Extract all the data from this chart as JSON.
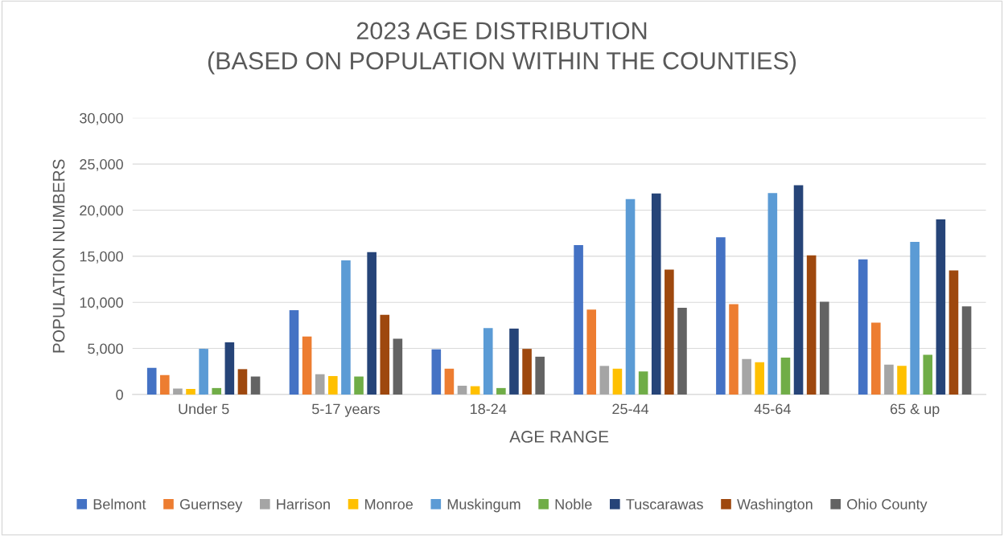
{
  "chart_data": {
    "type": "bar",
    "title": "2023 AGE DISTRIBUTION\n(BASED ON POPULATION WITHIN THE COUNTIES)",
    "xlabel": "AGE RANGE",
    "ylabel": "POPULATION NUMBERS",
    "categories": [
      "Under 5",
      "5-17 years",
      "18-24",
      "25-44",
      "45-64",
      "65 & up"
    ],
    "series": [
      {
        "name": "Belmont",
        "color": "#4472c4",
        "values": [
          2900,
          9150,
          4900,
          16200,
          17050,
          14650
        ]
      },
      {
        "name": "Guernsey",
        "color": "#ed7d31",
        "values": [
          2100,
          6300,
          2800,
          9200,
          9800,
          7800
        ]
      },
      {
        "name": "Harrison",
        "color": "#a5a5a5",
        "values": [
          650,
          2200,
          950,
          3100,
          3850,
          3250
        ]
      },
      {
        "name": "Monroe",
        "color": "#ffc000",
        "values": [
          600,
          2000,
          900,
          2800,
          3500,
          3100
        ]
      },
      {
        "name": "Muskingum",
        "color": "#5b9bd5",
        "values": [
          4950,
          14550,
          7200,
          21200,
          21850,
          16550
        ]
      },
      {
        "name": "Noble",
        "color": "#70ad47",
        "values": [
          700,
          1950,
          700,
          2500,
          4000,
          4300
        ]
      },
      {
        "name": "Tuscarawas",
        "color": "#264478",
        "values": [
          5650,
          15450,
          7150,
          21800,
          22700,
          19000
        ]
      },
      {
        "name": "Washington",
        "color": "#9e480e",
        "values": [
          2750,
          8650,
          4950,
          13550,
          15100,
          13450
        ]
      },
      {
        "name": "Ohio County",
        "color": "#636363",
        "values": [
          1950,
          6050,
          4100,
          9400,
          10050,
          9550
        ]
      }
    ],
    "ylim": [
      0,
      30000
    ],
    "yticks": [
      {
        "value": 0,
        "label": "0"
      },
      {
        "value": 5000,
        "label": "5,000"
      },
      {
        "value": 10000,
        "label": "10,000"
      },
      {
        "value": 15000,
        "label": "15,000"
      },
      {
        "value": 20000,
        "label": "20,000"
      },
      {
        "value": 25000,
        "label": "25,000"
      },
      {
        "value": 30000,
        "label": "30,000"
      }
    ],
    "grid": "y",
    "legend": "bottom"
  }
}
